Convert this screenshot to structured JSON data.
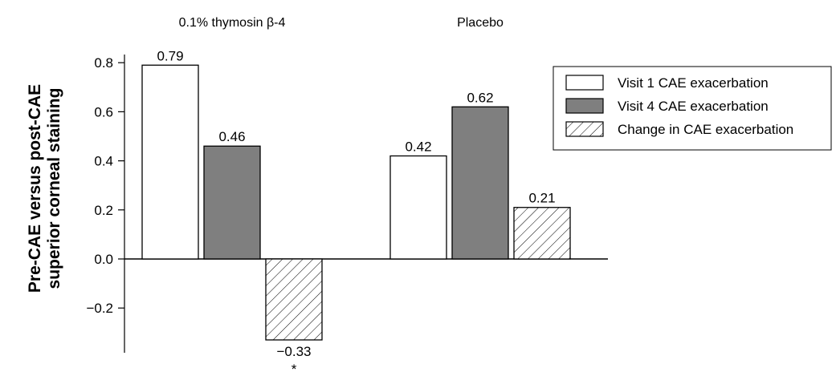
{
  "chart_data": {
    "type": "bar",
    "title": "",
    "xlabel": "",
    "ylabel_line1": "Pre-CAE versus post-CAE",
    "ylabel_line2": "superior corneal staining",
    "ylim": [
      -0.4,
      0.85
    ],
    "yticks": [
      -0.2,
      0.0,
      0.2,
      0.4,
      0.6,
      0.8
    ],
    "ytick_labels": [
      "−0.2",
      "0.0",
      "0.2",
      "0.4",
      "0.6",
      "0.8"
    ],
    "categories": [
      "0.1% thymosin β-4",
      "Placebo"
    ],
    "series": [
      {
        "name": "Visit 1 CAE exacerbation",
        "values": [
          0.79,
          0.42
        ],
        "labels": [
          "0.79",
          "0.42"
        ],
        "fill": "#ffffff",
        "pattern": "none"
      },
      {
        "name": "Visit 4 CAE exacerbation",
        "values": [
          0.46,
          0.62
        ],
        "labels": [
          "0.46",
          "0.62"
        ],
        "fill": "#7f7f7f",
        "pattern": "none"
      },
      {
        "name": "Change in CAE exacerbation",
        "values": [
          -0.33,
          0.21
        ],
        "labels": [
          "−0.33",
          "0.21"
        ],
        "fill": "#ffffff",
        "pattern": "hatch"
      }
    ],
    "annotations": [
      {
        "text": "*",
        "category": 0,
        "series": 2
      }
    ],
    "legend_placement": "top-right",
    "grid": false
  }
}
